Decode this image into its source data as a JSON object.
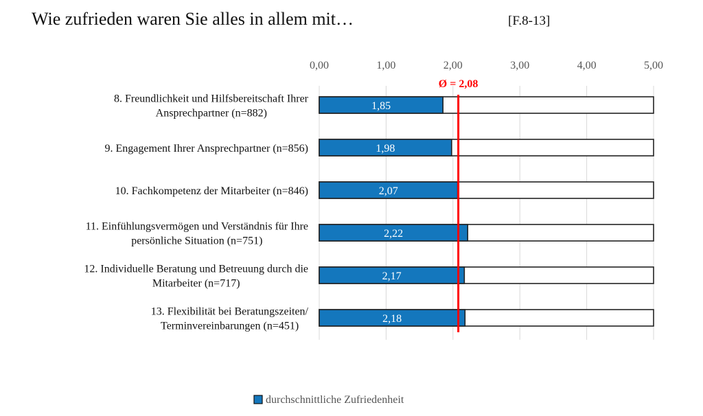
{
  "chart_data": {
    "type": "bar",
    "orientation": "horizontal",
    "title": "Wie zufrieden waren Sie alles in allem mit…",
    "title_suffix": "[F.8-13]",
    "categories": [
      [
        "8. Freundlichkeit und Hilfsbereitschaft Ihrer",
        "Ansprechpartner (n=882)"
      ],
      [
        "9. Engagement Ihrer Ansprechpartner (n=856)"
      ],
      [
        "10. Fachkompetenz der Mitarbeiter (n=846)"
      ],
      [
        "11. Einfühlungsvermögen und Verständnis für Ihre",
        "persönliche Situation (n=751)"
      ],
      [
        "12. Individuelle Beratung und Betreuung durch die",
        "Mitarbeiter (n=717)"
      ],
      [
        "13. Flexibilität bei Beratungszeiten/",
        "Terminvereinbarungen (n=451)"
      ]
    ],
    "series": [
      {
        "name": "durchschnittliche Zufriedenheit",
        "values": [
          1.85,
          1.98,
          2.07,
          2.22,
          2.17,
          2.18
        ],
        "color": "#1477bd"
      }
    ],
    "data_labels": [
      "1,85",
      "1,98",
      "2,07",
      "2,22",
      "2,17",
      "2,18"
    ],
    "xlim": [
      0,
      5
    ],
    "x_ticks": [
      0,
      1,
      2,
      3,
      4,
      5
    ],
    "x_tick_labels": [
      "0,00",
      "1,00",
      "2,00",
      "3,00",
      "4,00",
      "5,00"
    ],
    "x_axis_position": "top",
    "background_bar_max": 5,
    "grid": true,
    "reference_line": {
      "value": 2.08,
      "label": "Ø = 2,08",
      "color": "#ff0000"
    },
    "legend_position": "bottom"
  }
}
